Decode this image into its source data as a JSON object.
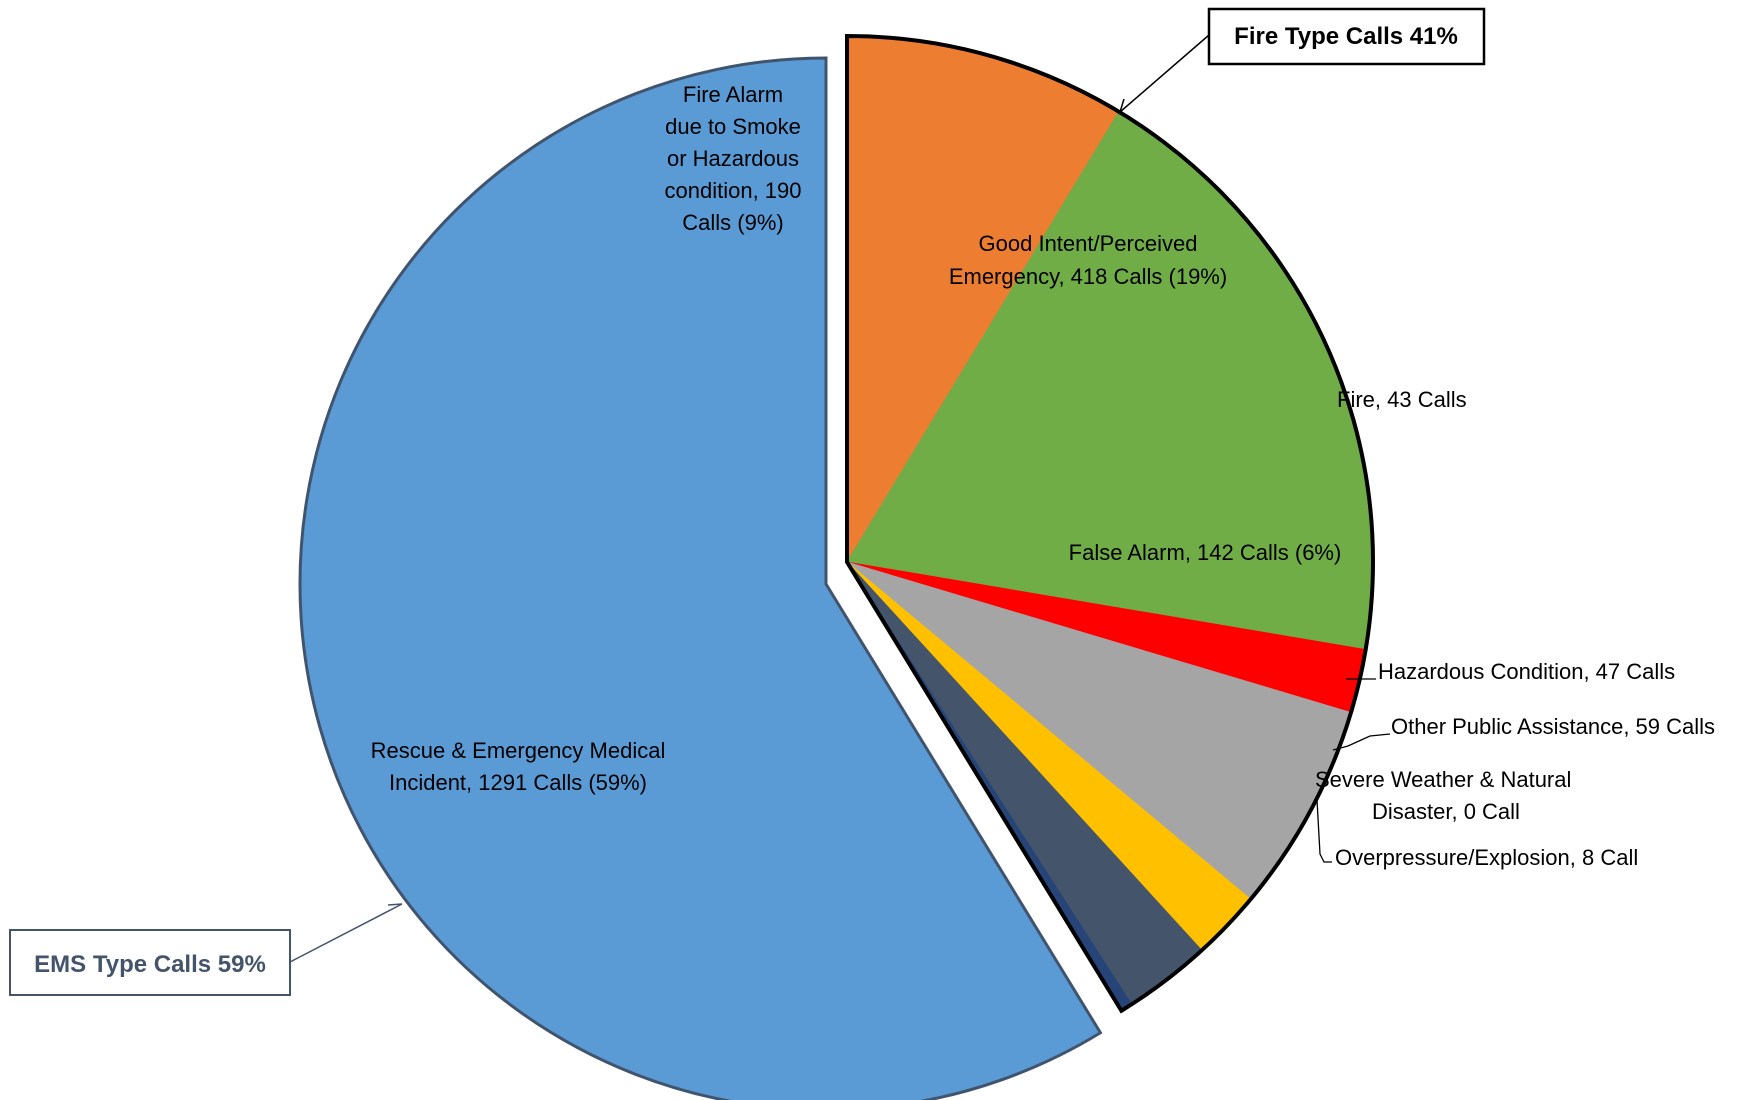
{
  "chart_data": {
    "type": "pie",
    "title": "",
    "slices": [
      {
        "name": "Fire Alarm due to Smoke or Hazardous condition",
        "value": 190,
        "percent": 9,
        "color": "#ED7D31",
        "group": "fire",
        "label": [
          "Fire Alarm",
          "due to Smoke",
          "or Hazardous",
          "condition, 190",
          "Calls (9%)"
        ]
      },
      {
        "name": "Good Intent/Perceived Emergency",
        "value": 418,
        "percent": 19,
        "color": "#70AD47",
        "group": "fire",
        "label": [
          "Good Intent/Perceived",
          "Emergency, 418 Calls (19%)"
        ]
      },
      {
        "name": "Fire",
        "value": 43,
        "color": "#FF0000",
        "group": "fire",
        "label": [
          "Fire, 43 Calls"
        ]
      },
      {
        "name": "False Alarm",
        "value": 142,
        "percent": 6,
        "color": "#A5A5A5",
        "group": "fire",
        "label": [
          "False Alarm, 142 Calls (6%)"
        ]
      },
      {
        "name": "Hazardous Condition",
        "value": 47,
        "color": "#FFC000",
        "group": "fire",
        "label": [
          "Hazardous Condition, 47 Calls"
        ]
      },
      {
        "name": "Other Public Assistance",
        "value": 59,
        "color": "#44546A",
        "group": "fire",
        "label": [
          "Other Public Assistance, 59 Calls"
        ]
      },
      {
        "name": "Severe Weather & Natural Disaster",
        "value": 0,
        "color": "#5B9BD5",
        "group": "fire",
        "label": [
          "Severe Weather & Natural",
          "Disaster, 0 Call"
        ]
      },
      {
        "name": "Overpressure/Explosion",
        "value": 8,
        "color": "#264478",
        "group": "fire",
        "label": [
          "Overpressure/Explosion, 8 Call"
        ]
      },
      {
        "name": "Rescue & Emergency Medical Incident",
        "value": 1291,
        "percent": 59,
        "color": "#5B9BD5",
        "group": "ems",
        "label": [
          "Rescue & Emergency Medical",
          "Incident, 1291 Calls (59%)"
        ]
      }
    ],
    "callouts": {
      "fire": "Fire Type Calls 41%",
      "ems": "EMS Type Calls 59%"
    }
  }
}
